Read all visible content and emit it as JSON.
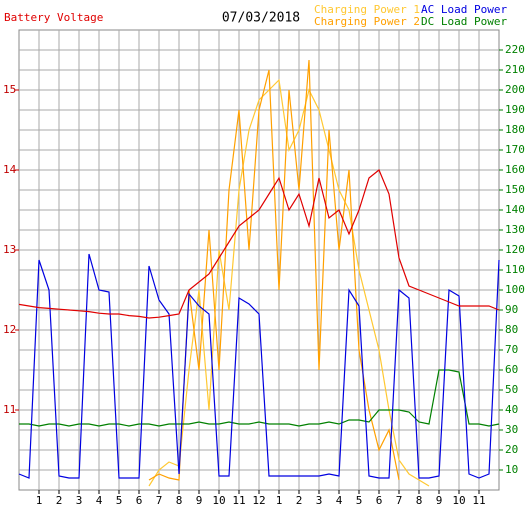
{
  "chart_data": {
    "type": "line",
    "title": "07/03/2018",
    "x": [
      0,
      0.5,
      1,
      1.5,
      2,
      2.5,
      3,
      3.5,
      4,
      4.5,
      5,
      5.5,
      6,
      6.5,
      7,
      7.5,
      8,
      8.5,
      9,
      9.5,
      10,
      10.5,
      11,
      11.5,
      12,
      12.5,
      13,
      13.5,
      14,
      14.5,
      15,
      15.5,
      16,
      16.5,
      17,
      17.5,
      18,
      18.5,
      19,
      19.5,
      20,
      20.5,
      21,
      21.5,
      22,
      22.5,
      23,
      23.5,
      24
    ],
    "xlim": [
      0,
      24
    ],
    "xticks": [
      {
        "value": 1,
        "label": "1"
      },
      {
        "value": 2,
        "label": "2"
      },
      {
        "value": 3,
        "label": "3"
      },
      {
        "value": 4,
        "label": "4"
      },
      {
        "value": 5,
        "label": "5"
      },
      {
        "value": 6,
        "label": "6"
      },
      {
        "value": 7,
        "label": "7"
      },
      {
        "value": 8,
        "label": "8"
      },
      {
        "value": 9,
        "label": "9"
      },
      {
        "value": 10,
        "label": "10"
      },
      {
        "value": 11,
        "label": "11"
      },
      {
        "value": 12,
        "label": "12"
      },
      {
        "value": 13,
        "label": "1"
      },
      {
        "value": 14,
        "label": "2"
      },
      {
        "value": 15,
        "label": "3"
      },
      {
        "value": 16,
        "label": "4"
      },
      {
        "value": 17,
        "label": "5"
      },
      {
        "value": 18,
        "label": "6"
      },
      {
        "value": 19,
        "label": "7"
      },
      {
        "value": 20,
        "label": "8"
      },
      {
        "value": 21,
        "label": "9"
      },
      {
        "value": 22,
        "label": "10"
      },
      {
        "value": 23,
        "label": "11"
      }
    ],
    "ylim": [
      10,
      15.75
    ],
    "yticks": [
      11,
      12,
      13,
      14,
      15
    ],
    "y2lim": [
      0,
      230
    ],
    "y2ticks": [
      10,
      20,
      30,
      40,
      50,
      60,
      70,
      80,
      90,
      100,
      110,
      120,
      130,
      140,
      150,
      160,
      170,
      180,
      190,
      200,
      210,
      220
    ],
    "grid": true,
    "series": [
      {
        "name": "Battery Voltage",
        "color": "#e00000",
        "values": [
          12.32,
          12.3,
          12.28,
          12.27,
          12.26,
          12.25,
          12.24,
          12.23,
          12.21,
          12.2,
          12.2,
          12.18,
          12.17,
          12.15,
          12.16,
          12.18,
          12.2,
          12.5,
          12.6,
          12.7,
          12.9,
          13.1,
          13.3,
          13.4,
          13.5,
          13.7,
          13.9,
          13.5,
          13.7,
          13.3,
          13.9,
          13.4,
          13.5,
          13.2,
          13.5,
          13.9,
          14.0,
          13.7,
          12.9,
          12.55,
          12.5,
          12.45,
          12.4,
          12.35,
          12.3,
          12.3,
          12.3,
          12.3,
          12.25
        ]
      },
      {
        "name": "Charging Power 1",
        "color": "#ffc832",
        "values": [
          null,
          null,
          null,
          null,
          null,
          null,
          null,
          null,
          null,
          null,
          null,
          null,
          null,
          2,
          10,
          14,
          12,
          60,
          100,
          40,
          120,
          90,
          150,
          180,
          195,
          200,
          205,
          170,
          180,
          200,
          190,
          170,
          150,
          140,
          110,
          90,
          70,
          40,
          15,
          8,
          5,
          2,
          null,
          null,
          null,
          null,
          null,
          null,
          null
        ]
      },
      {
        "name": "Charging Power 2",
        "color": "#ffa000",
        "values": [
          null,
          null,
          null,
          null,
          null,
          null,
          null,
          null,
          null,
          null,
          null,
          null,
          null,
          5,
          8,
          6,
          5,
          100,
          60,
          130,
          60,
          150,
          190,
          120,
          190,
          210,
          100,
          200,
          150,
          215,
          60,
          180,
          120,
          160,
          70,
          40,
          20,
          30,
          5,
          null,
          null,
          null,
          null,
          null,
          null,
          null,
          null,
          null,
          null
        ]
      },
      {
        "name": "AC Load Power",
        "color": "#0000e0",
        "values": [
          8,
          6,
          115,
          100,
          7,
          6,
          6,
          118,
          100,
          99,
          6,
          6,
          6,
          112,
          95,
          88,
          8,
          98,
          92,
          88,
          7,
          7,
          96,
          93,
          88,
          7,
          7,
          7,
          7,
          7,
          7,
          8,
          7,
          100,
          92,
          7,
          6,
          6,
          100,
          96,
          6,
          6,
          7,
          100,
          97,
          8,
          6,
          8,
          115
        ]
      },
      {
        "name": "DC Load Power",
        "color": "#008000",
        "values": [
          33,
          33,
          32,
          33,
          33,
          32,
          33,
          33,
          32,
          33,
          33,
          32,
          33,
          33,
          32,
          33,
          33,
          33,
          34,
          33,
          33,
          34,
          33,
          33,
          34,
          33,
          33,
          33,
          32,
          33,
          33,
          34,
          33,
          35,
          35,
          34,
          40,
          40,
          40,
          39,
          34,
          33,
          60,
          60,
          59,
          33,
          33,
          32,
          33
        ]
      }
    ]
  }
}
